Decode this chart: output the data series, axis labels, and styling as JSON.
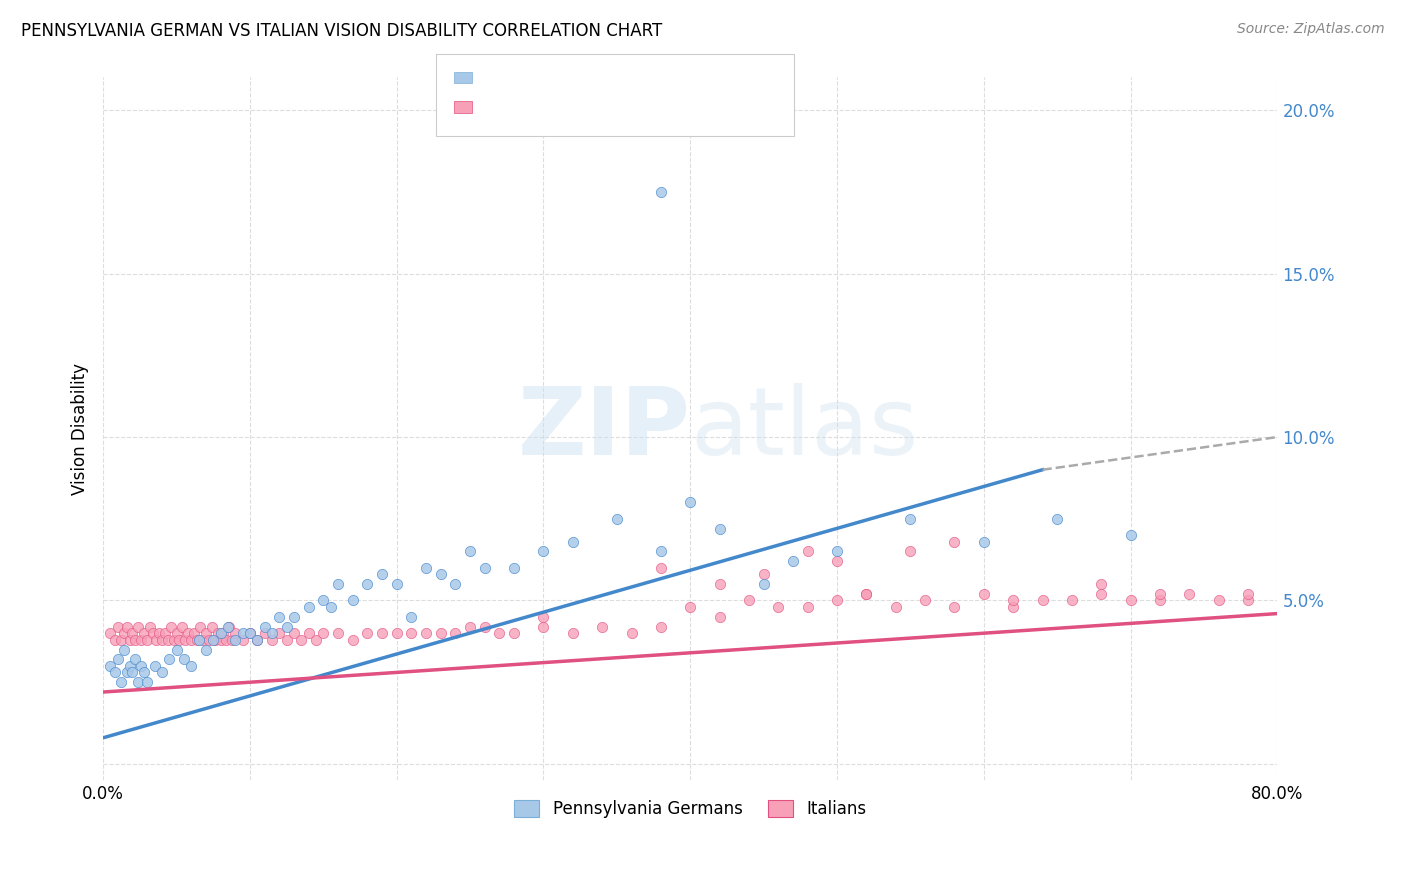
{
  "title": "PENNSYLVANIA GERMAN VS ITALIAN VISION DISABILITY CORRELATION CHART",
  "source": "Source: ZipAtlas.com",
  "ylabel": "Vision Disability",
  "xlim": [
    0.0,
    0.8
  ],
  "ylim": [
    -0.005,
    0.21
  ],
  "blue_color": "#a8c8e8",
  "pink_color": "#f8a0b8",
  "blue_line_color": "#4488cc",
  "pink_line_color": "#e05080",
  "dashed_line_color": "#aaaaaa",
  "watermark": "ZIPatlas",
  "legend_label_blue": "Pennsylvania Germans",
  "legend_label_pink": "Italians",
  "blue_line_x0": 0.0,
  "blue_line_y0": 0.008,
  "blue_line_x1": 0.64,
  "blue_line_y1": 0.09,
  "dashed_line_x0": 0.64,
  "dashed_line_y0": 0.09,
  "dashed_line_x1": 0.8,
  "dashed_line_y1": 0.1,
  "pink_line_x0": 0.0,
  "pink_line_y0": 0.022,
  "pink_line_x1": 0.8,
  "pink_line_y1": 0.046,
  "blue_scatter_x": [
    0.005,
    0.008,
    0.01,
    0.012,
    0.014,
    0.016,
    0.018,
    0.02,
    0.022,
    0.024,
    0.026,
    0.028,
    0.03,
    0.035,
    0.04,
    0.045,
    0.05,
    0.055,
    0.06,
    0.065,
    0.07,
    0.075,
    0.08,
    0.085,
    0.09,
    0.095,
    0.1,
    0.105,
    0.11,
    0.115,
    0.12,
    0.125,
    0.13,
    0.14,
    0.15,
    0.155,
    0.16,
    0.17,
    0.18,
    0.19,
    0.2,
    0.21,
    0.22,
    0.23,
    0.24,
    0.25,
    0.26,
    0.28,
    0.3,
    0.32,
    0.35,
    0.38,
    0.4,
    0.42,
    0.45,
    0.47,
    0.5,
    0.55,
    0.6,
    0.65,
    0.7,
    0.38
  ],
  "blue_scatter_y": [
    0.03,
    0.028,
    0.032,
    0.025,
    0.035,
    0.028,
    0.03,
    0.028,
    0.032,
    0.025,
    0.03,
    0.028,
    0.025,
    0.03,
    0.028,
    0.032,
    0.035,
    0.032,
    0.03,
    0.038,
    0.035,
    0.038,
    0.04,
    0.042,
    0.038,
    0.04,
    0.04,
    0.038,
    0.042,
    0.04,
    0.045,
    0.042,
    0.045,
    0.048,
    0.05,
    0.048,
    0.055,
    0.05,
    0.055,
    0.058,
    0.055,
    0.045,
    0.06,
    0.058,
    0.055,
    0.065,
    0.06,
    0.06,
    0.065,
    0.068,
    0.075,
    0.065,
    0.08,
    0.072,
    0.055,
    0.062,
    0.065,
    0.075,
    0.068,
    0.075,
    0.07,
    0.175
  ],
  "pink_scatter_x": [
    0.005,
    0.008,
    0.01,
    0.012,
    0.014,
    0.016,
    0.018,
    0.02,
    0.022,
    0.024,
    0.026,
    0.028,
    0.03,
    0.032,
    0.034,
    0.036,
    0.038,
    0.04,
    0.042,
    0.044,
    0.046,
    0.048,
    0.05,
    0.052,
    0.054,
    0.056,
    0.058,
    0.06,
    0.062,
    0.064,
    0.066,
    0.068,
    0.07,
    0.072,
    0.074,
    0.076,
    0.078,
    0.08,
    0.082,
    0.084,
    0.086,
    0.088,
    0.09,
    0.095,
    0.1,
    0.105,
    0.11,
    0.115,
    0.12,
    0.125,
    0.13,
    0.135,
    0.14,
    0.145,
    0.15,
    0.16,
    0.17,
    0.18,
    0.19,
    0.2,
    0.21,
    0.22,
    0.23,
    0.24,
    0.25,
    0.26,
    0.27,
    0.28,
    0.3,
    0.32,
    0.34,
    0.36,
    0.38,
    0.4,
    0.42,
    0.44,
    0.46,
    0.48,
    0.5,
    0.52,
    0.54,
    0.56,
    0.58,
    0.6,
    0.62,
    0.64,
    0.66,
    0.68,
    0.7,
    0.72,
    0.74,
    0.76,
    0.78,
    0.45,
    0.5,
    0.55,
    0.38,
    0.42,
    0.48,
    0.52,
    0.58,
    0.62,
    0.68,
    0.72,
    0.78,
    0.3
  ],
  "pink_scatter_y": [
    0.04,
    0.038,
    0.042,
    0.038,
    0.04,
    0.042,
    0.038,
    0.04,
    0.038,
    0.042,
    0.038,
    0.04,
    0.038,
    0.042,
    0.04,
    0.038,
    0.04,
    0.038,
    0.04,
    0.038,
    0.042,
    0.038,
    0.04,
    0.038,
    0.042,
    0.038,
    0.04,
    0.038,
    0.04,
    0.038,
    0.042,
    0.038,
    0.04,
    0.038,
    0.042,
    0.038,
    0.04,
    0.038,
    0.04,
    0.038,
    0.042,
    0.038,
    0.04,
    0.038,
    0.04,
    0.038,
    0.04,
    0.038,
    0.04,
    0.038,
    0.04,
    0.038,
    0.04,
    0.038,
    0.04,
    0.04,
    0.038,
    0.04,
    0.04,
    0.04,
    0.04,
    0.04,
    0.04,
    0.04,
    0.042,
    0.042,
    0.04,
    0.04,
    0.042,
    0.04,
    0.042,
    0.04,
    0.042,
    0.048,
    0.045,
    0.05,
    0.048,
    0.048,
    0.05,
    0.052,
    0.048,
    0.05,
    0.048,
    0.052,
    0.048,
    0.05,
    0.05,
    0.052,
    0.05,
    0.05,
    0.052,
    0.05,
    0.05,
    0.058,
    0.062,
    0.065,
    0.06,
    0.055,
    0.065,
    0.052,
    0.068,
    0.05,
    0.055,
    0.052,
    0.052,
    0.045
  ]
}
